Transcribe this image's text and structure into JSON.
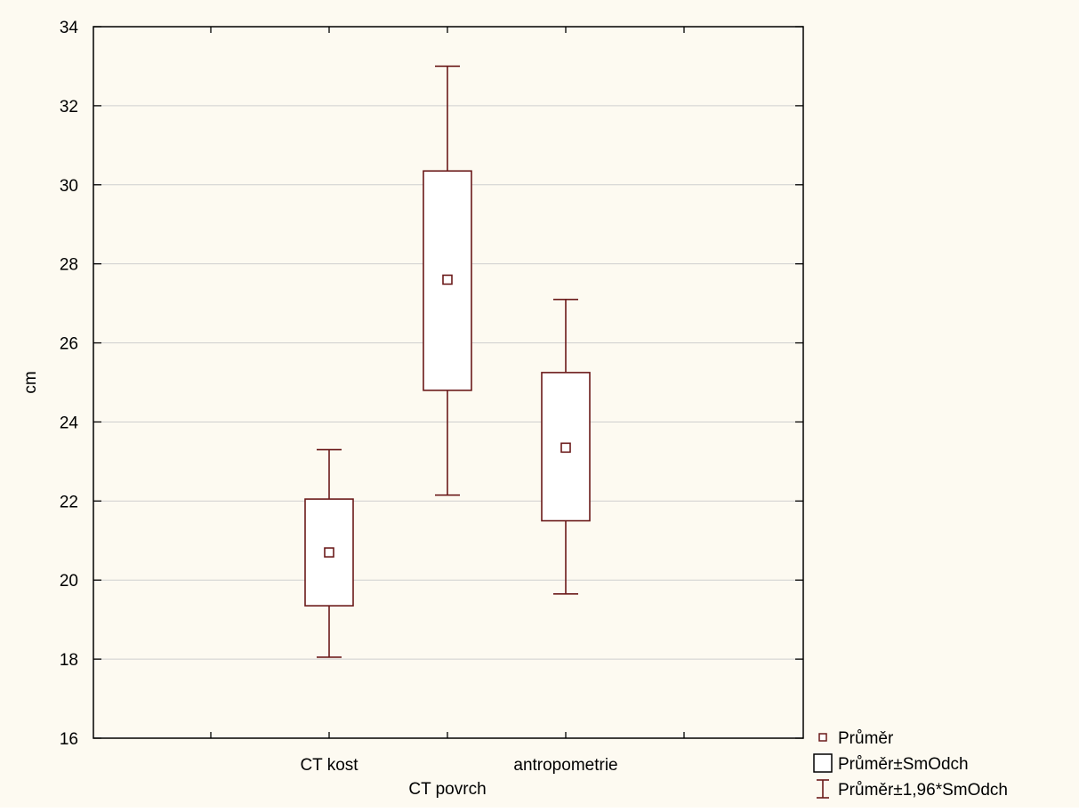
{
  "chart_data": {
    "type": "box",
    "title": "",
    "xlabel": "",
    "ylabel": "cm",
    "ylim": [
      16,
      34
    ],
    "yticks": [
      16,
      18,
      20,
      22,
      24,
      26,
      28,
      30,
      32,
      34
    ],
    "grid": true,
    "legend_position": "bottom-right",
    "color": "#6b1a1a",
    "categories": [
      "CT kost",
      "CT povrch",
      "antropometrie"
    ],
    "boxes": [
      {
        "category": "CT kost",
        "mean": 20.7,
        "sd_low": 19.35,
        "sd_high": 22.05,
        "ci_low": 18.05,
        "ci_high": 23.3
      },
      {
        "category": "CT povrch",
        "mean": 27.6,
        "sd_low": 24.8,
        "sd_high": 30.35,
        "ci_low": 22.15,
        "ci_high": 33.0
      },
      {
        "category": "antropometrie",
        "mean": 23.35,
        "sd_low": 21.5,
        "sd_high": 25.25,
        "ci_low": 19.65,
        "ci_high": 27.1
      }
    ],
    "legend": [
      {
        "symbol": "mean-marker",
        "label": "Průměr"
      },
      {
        "symbol": "box",
        "label": "Průměr±SmOdch"
      },
      {
        "symbol": "whisker",
        "label": "Průměr±1,96*SmOdch"
      }
    ]
  }
}
